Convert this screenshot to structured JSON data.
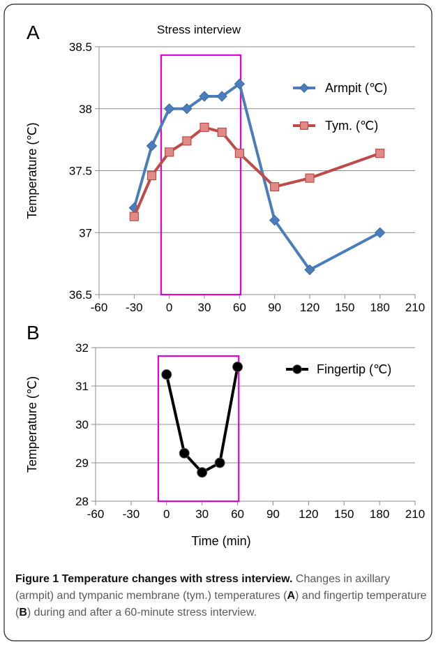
{
  "figure": {
    "caption_title": "Figure 1 Temperature changes with stress interview.",
    "caption_body_1": " Changes in axillary (armpit) and tympanic membrane (tym.) temperatures (",
    "caption_letter_a": "A",
    "caption_body_2": ") and fingertip temperature (",
    "caption_letter_b": "B",
    "caption_body_3": ") during and after a 60-minute stress interview."
  },
  "chart_data": [
    {
      "panel": "A",
      "type": "line",
      "title": "Stress interview",
      "xlabel": "",
      "ylabel": "Temperature (℃)",
      "xlim": [
        -60,
        210
      ],
      "ylim": [
        36.5,
        38.5
      ],
      "x_ticks": [
        -60,
        -30,
        0,
        30,
        60,
        90,
        120,
        150,
        180,
        210
      ],
      "y_ticks": [
        36.5,
        37,
        37.5,
        38,
        38.5
      ],
      "grid": "horizontal",
      "highlight_range_x": [
        -7,
        61
      ],
      "highlight_color": "#e000e0",
      "legend_position": "right",
      "series": [
        {
          "name": "Armpit (℃)",
          "color": "#4a7ebb",
          "marker": "diamond",
          "x": [
            -30,
            -15,
            0,
            15,
            30,
            45,
            60,
            90,
            120,
            180
          ],
          "y": [
            37.2,
            37.7,
            38.0,
            38.0,
            38.1,
            38.1,
            38.2,
            37.1,
            36.7,
            37.0
          ]
        },
        {
          "name": "Tym. (℃)",
          "color": "#be4b48",
          "marker": "square",
          "x": [
            -30,
            -15,
            0,
            15,
            30,
            45,
            60,
            90,
            120,
            180
          ],
          "y": [
            37.13,
            37.46,
            37.65,
            37.74,
            37.85,
            37.81,
            37.64,
            37.37,
            37.44,
            37.64
          ]
        }
      ]
    },
    {
      "panel": "B",
      "type": "line",
      "title": "",
      "xlabel": "Time (min)",
      "ylabel": "Temperature (℃)",
      "xlim": [
        -60,
        210
      ],
      "ylim": [
        28,
        32
      ],
      "x_ticks": [
        -60,
        -30,
        0,
        30,
        60,
        90,
        120,
        150,
        180,
        210
      ],
      "y_ticks": [
        28,
        29,
        30,
        31,
        32
      ],
      "grid": "horizontal",
      "highlight_range_x": [
        -7,
        61
      ],
      "highlight_color": "#e000e0",
      "legend_position": "top-right",
      "series": [
        {
          "name": "Fingertip (℃)",
          "color": "#000000",
          "marker": "circle",
          "x": [
            0,
            15,
            30,
            45,
            60
          ],
          "y": [
            31.3,
            29.25,
            28.75,
            29.0,
            31.5
          ]
        }
      ]
    }
  ]
}
